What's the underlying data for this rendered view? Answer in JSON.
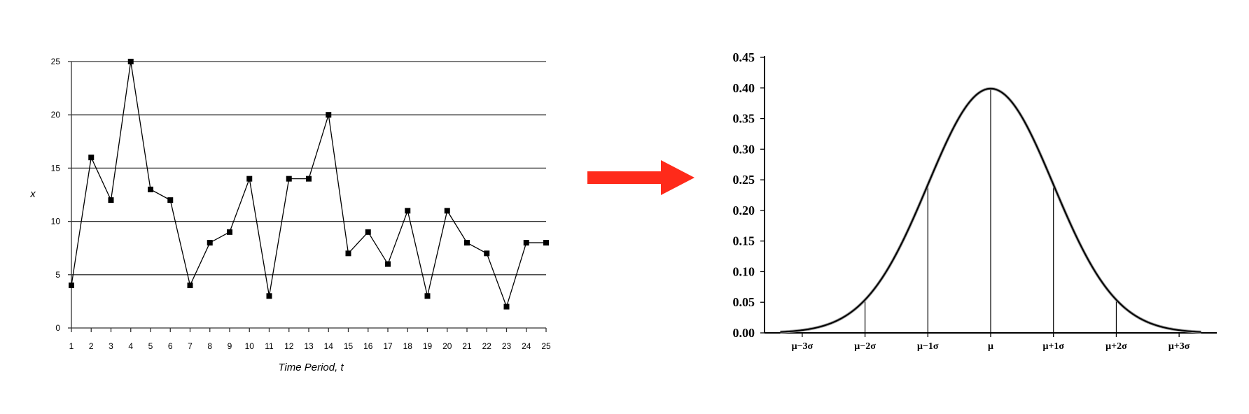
{
  "chart_data": [
    {
      "type": "line",
      "title": "",
      "xlabel": "Time Period, t",
      "ylabel": "x",
      "categories": [
        "1",
        "2",
        "3",
        "4",
        "5",
        "6",
        "7",
        "8",
        "9",
        "10",
        "11",
        "12",
        "13",
        "14",
        "15",
        "16",
        "17",
        "18",
        "19",
        "20",
        "21",
        "22",
        "23",
        "24",
        "25"
      ],
      "x": [
        1,
        2,
        3,
        4,
        5,
        6,
        7,
        8,
        9,
        10,
        11,
        12,
        13,
        14,
        15,
        16,
        17,
        18,
        19,
        20,
        21,
        22,
        23,
        24,
        25
      ],
      "values": [
        4,
        16,
        12,
        25,
        13,
        12,
        4,
        8,
        9,
        14,
        3,
        14,
        14,
        20,
        7,
        9,
        6,
        11,
        3,
        11,
        8,
        7,
        2,
        8,
        8
      ],
      "yticks": [
        "0",
        "5",
        "10",
        "15",
        "20",
        "25"
      ],
      "ylim": [
        0,
        25
      ],
      "grid": "horizontal",
      "marker": "square",
      "line_color": "#000000"
    },
    {
      "type": "line",
      "title": "",
      "xlabel": "",
      "ylabel": "",
      "curve": "standard normal density",
      "xticks": [
        "μ−3σ",
        "μ−2σ",
        "μ−1σ",
        "μ",
        "μ+1σ",
        "μ+2σ",
        "μ+3σ"
      ],
      "xlim": [
        -3.6,
        3.6
      ],
      "yticks": [
        "0.00",
        "0.05",
        "0.10",
        "0.15",
        "0.20",
        "0.25",
        "0.30",
        "0.35",
        "0.40",
        "0.45"
      ],
      "ylim": [
        0,
        0.45
      ],
      "vertical_lines_at": [
        -2,
        -1,
        0,
        1,
        2
      ],
      "grid": false,
      "line_color": "#000000"
    }
  ],
  "arrow": {
    "color": "#ff2a1a",
    "direction": "right",
    "name": "arrow-icon"
  }
}
